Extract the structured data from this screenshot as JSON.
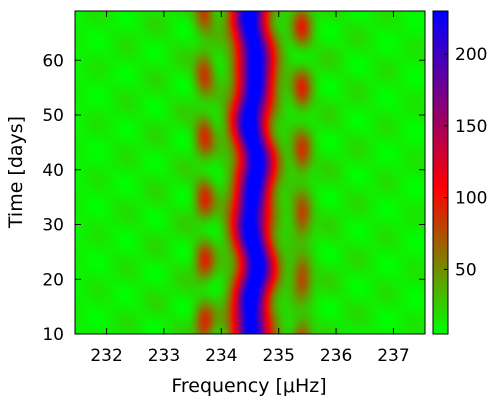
{
  "chart_data": {
    "type": "heatmap",
    "title": "",
    "xlabel": "Frequency [μHz]",
    "ylabel": "Time [days]",
    "xlim": [
      231.45,
      237.55
    ],
    "ylim": [
      10,
      69
    ],
    "xticks": [
      232,
      233,
      234,
      235,
      236,
      237
    ],
    "yticks": [
      10,
      20,
      30,
      40,
      50,
      60
    ],
    "xtick_labels": [
      "232",
      "233",
      "234",
      "235",
      "236",
      "237"
    ],
    "ytick_labels": [
      "10",
      "20",
      "30",
      "40",
      "50",
      "60"
    ],
    "colorbar": {
      "range": [
        5,
        230
      ],
      "ticks": [
        50,
        100,
        150,
        200
      ],
      "tick_labels": [
        "50",
        "100",
        "150",
        "200"
      ],
      "colormap": [
        "#00ff00",
        "#ff0000",
        "#0000ff"
      ]
    },
    "features": {
      "ridge_center_uHz": 234.55,
      "ridge_peak_value": 230,
      "ridge_halfwidth_uHz": 0.35,
      "side_lobes_uHz": [
        233.7,
        235.4
      ],
      "side_lobe_value": 70,
      "background_value": 5
    },
    "grid": false
  }
}
